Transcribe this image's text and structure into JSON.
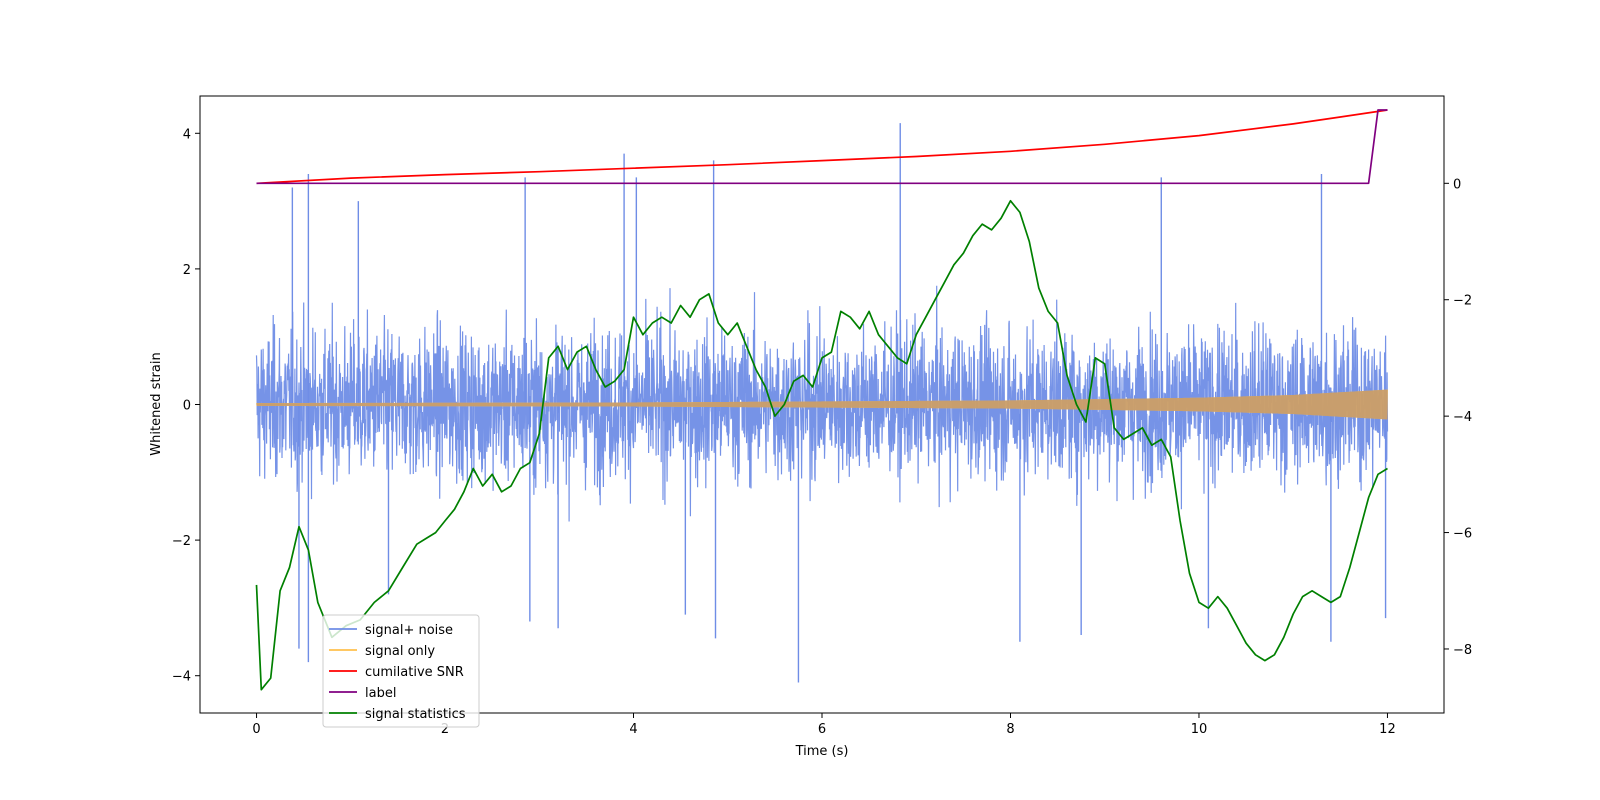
{
  "chart_data": {
    "type": "line",
    "title": "",
    "xlabel": "Time (s)",
    "ylabel": "Whitened strain",
    "y2label": "",
    "xlim": [
      -0.6,
      12.6
    ],
    "ylim": [
      -4.55,
      4.55
    ],
    "y2lim": [
      -9.1,
      1.5
    ],
    "xticks": [
      0,
      2,
      4,
      6,
      8,
      10,
      12
    ],
    "yticks": [
      -4,
      -2,
      0,
      2,
      4
    ],
    "y2ticks": [
      -8,
      -6,
      -4,
      -2,
      0
    ],
    "grid": false,
    "legend_position": "lower-left",
    "series": [
      {
        "name": "signal+ noise",
        "axis": "left",
        "color": "#6f8de6",
        "band": {
          "typical_amplitude": 1.4,
          "max_amplitude": 3.0
        },
        "spikes": [
          {
            "x": 0.38,
            "y": 3.2
          },
          {
            "x": 0.45,
            "y": -3.6
          },
          {
            "x": 0.55,
            "y": 3.4
          },
          {
            "x": 0.55,
            "y": -3.8
          },
          {
            "x": 1.08,
            "y": 3.0
          },
          {
            "x": 1.4,
            "y": -2.8
          },
          {
            "x": 2.85,
            "y": 3.35
          },
          {
            "x": 2.9,
            "y": -3.2
          },
          {
            "x": 3.2,
            "y": -3.3
          },
          {
            "x": 3.9,
            "y": 3.7
          },
          {
            "x": 4.03,
            "y": 3.35
          },
          {
            "x": 4.55,
            "y": -3.1
          },
          {
            "x": 4.85,
            "y": 3.6
          },
          {
            "x": 4.87,
            "y": -3.45
          },
          {
            "x": 5.75,
            "y": -4.1
          },
          {
            "x": 6.83,
            "y": 4.15
          },
          {
            "x": 8.1,
            "y": -3.5
          },
          {
            "x": 8.75,
            "y": -3.4
          },
          {
            "x": 9.6,
            "y": 3.35
          },
          {
            "x": 10.1,
            "y": -3.3
          },
          {
            "x": 11.3,
            "y": 3.4
          },
          {
            "x": 11.4,
            "y": -3.5
          },
          {
            "x": 11.98,
            "y": -3.15
          }
        ]
      },
      {
        "name": "signal only",
        "axis": "left",
        "color": "#ffc04d",
        "envelope": {
          "x": [
            0,
            4,
            8,
            10,
            11,
            12
          ],
          "amplitude": [
            0.02,
            0.03,
            0.06,
            0.1,
            0.14,
            0.22
          ]
        }
      },
      {
        "name": "cumilative SNR",
        "axis": "right",
        "color": "#ff0000",
        "x": [
          0,
          1,
          2,
          3,
          4,
          5,
          6,
          7,
          8,
          9,
          10,
          11,
          11.5,
          12
        ],
        "y": [
          0.0,
          0.09,
          0.15,
          0.2,
          0.26,
          0.32,
          0.39,
          0.46,
          0.55,
          0.67,
          0.82,
          1.02,
          1.14,
          1.26
        ]
      },
      {
        "name": "label",
        "axis": "right",
        "color": "#800080",
        "x": [
          0,
          11.8,
          11.9,
          12
        ],
        "y": [
          0,
          0,
          1.26,
          1.26
        ]
      },
      {
        "name": "signal statistics",
        "axis": "right",
        "color": "#008000",
        "x": [
          0,
          0.05,
          0.15,
          0.25,
          0.35,
          0.45,
          0.55,
          0.65,
          0.8,
          0.95,
          1.1,
          1.25,
          1.4,
          1.55,
          1.7,
          1.8,
          1.9,
          2.0,
          2.1,
          2.2,
          2.3,
          2.4,
          2.5,
          2.6,
          2.7,
          2.8,
          2.9,
          3.0,
          3.1,
          3.2,
          3.3,
          3.4,
          3.5,
          3.6,
          3.7,
          3.8,
          3.9,
          4.0,
          4.1,
          4.2,
          4.3,
          4.4,
          4.5,
          4.6,
          4.7,
          4.8,
          4.9,
          5.0,
          5.1,
          5.2,
          5.3,
          5.4,
          5.5,
          5.6,
          5.7,
          5.8,
          5.9,
          6.0,
          6.1,
          6.2,
          6.3,
          6.4,
          6.5,
          6.6,
          6.7,
          6.8,
          6.9,
          7.0,
          7.1,
          7.2,
          7.3,
          7.4,
          7.5,
          7.6,
          7.7,
          7.8,
          7.9,
          8.0,
          8.1,
          8.2,
          8.3,
          8.4,
          8.5,
          8.6,
          8.7,
          8.8,
          8.9,
          9.0,
          9.1,
          9.2,
          9.3,
          9.4,
          9.5,
          9.6,
          9.7,
          9.8,
          9.9,
          10.0,
          10.1,
          10.2,
          10.3,
          10.4,
          10.5,
          10.6,
          10.7,
          10.8,
          10.9,
          11.0,
          11.1,
          11.2,
          11.3,
          11.4,
          11.5,
          11.6,
          11.7,
          11.8,
          11.9,
          12.0
        ],
        "y": [
          -6.9,
          -8.7,
          -8.5,
          -7.0,
          -6.6,
          -5.9,
          -6.3,
          -7.2,
          -7.8,
          -7.6,
          -7.5,
          -7.2,
          -7.0,
          -6.6,
          -6.2,
          -6.1,
          -6.0,
          -5.8,
          -5.6,
          -5.3,
          -4.9,
          -5.2,
          -5.0,
          -5.3,
          -5.2,
          -4.9,
          -4.8,
          -4.3,
          -3.0,
          -2.8,
          -3.2,
          -2.9,
          -2.8,
          -3.2,
          -3.5,
          -3.4,
          -3.2,
          -2.3,
          -2.6,
          -2.4,
          -2.3,
          -2.4,
          -2.1,
          -2.3,
          -2.0,
          -1.9,
          -2.4,
          -2.6,
          -2.4,
          -2.8,
          -3.2,
          -3.5,
          -4.0,
          -3.8,
          -3.4,
          -3.3,
          -3.5,
          -3.0,
          -2.9,
          -2.2,
          -2.3,
          -2.5,
          -2.2,
          -2.6,
          -2.8,
          -3.0,
          -3.1,
          -2.6,
          -2.3,
          -2.0,
          -1.7,
          -1.4,
          -1.2,
          -0.9,
          -0.7,
          -0.8,
          -0.6,
          -0.3,
          -0.5,
          -1.0,
          -1.8,
          -2.2,
          -2.4,
          -3.3,
          -3.8,
          -4.1,
          -3.0,
          -3.1,
          -4.2,
          -4.4,
          -4.3,
          -4.2,
          -4.5,
          -4.4,
          -4.7,
          -5.8,
          -6.7,
          -7.2,
          -7.3,
          -7.1,
          -7.3,
          -7.6,
          -7.9,
          -8.1,
          -8.2,
          -8.1,
          -7.8,
          -7.4,
          -7.1,
          -7.0,
          -7.1,
          -7.2,
          -7.1,
          -6.6,
          -6.0,
          -5.4,
          -5.0,
          -4.9
        ]
      }
    ]
  }
}
